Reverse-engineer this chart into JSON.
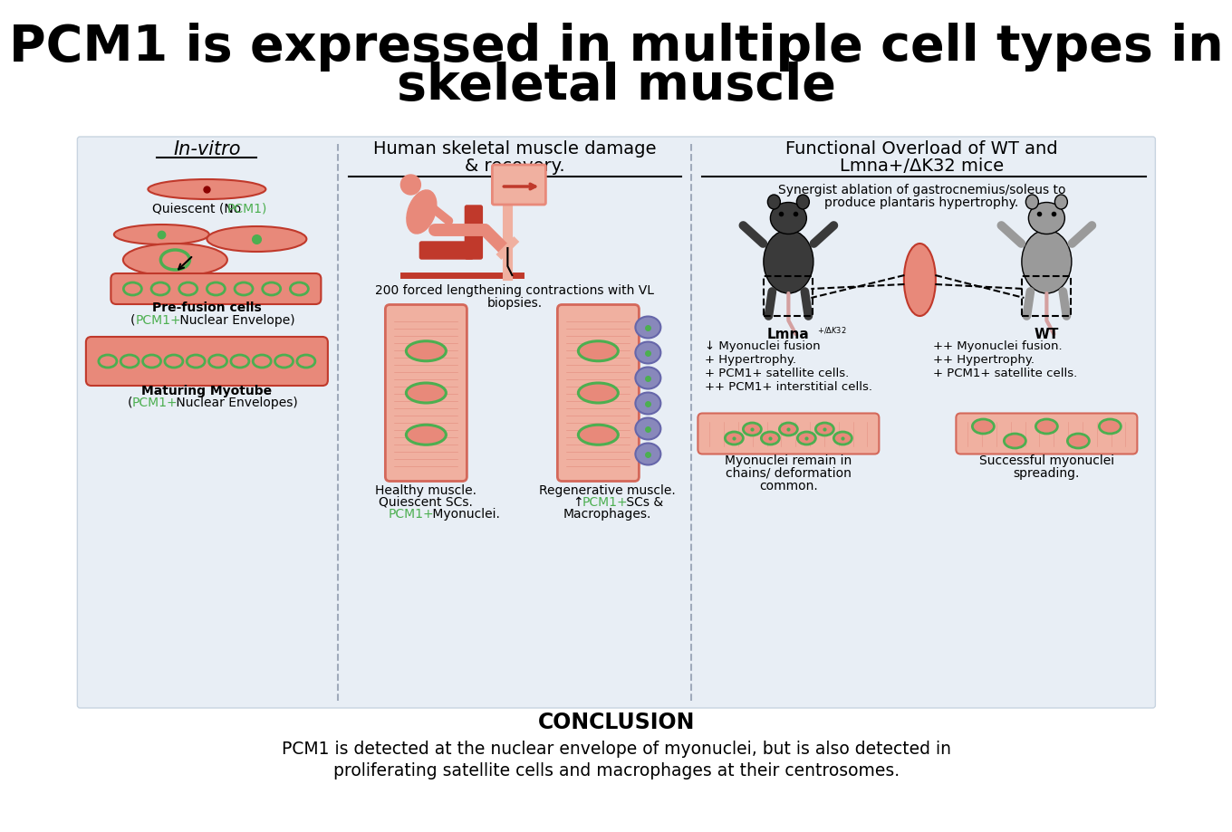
{
  "title_line1": "PCM1 is expressed in multiple cell types in",
  "title_line2": "skeletal muscle",
  "title_fontsize": 40,
  "background_color": "#ffffff",
  "panel_bg_color": "#e8eef5",
  "conclusion_title": "CONCLUSION",
  "conclusion_text1": "PCM1 is detected at the nuclear envelope of myonuclei, but is also detected in",
  "conclusion_text2": "proliferating satellite cells and macrophages at their centrosomes.",
  "col1_title": "In-vitro",
  "col2_title_line1": "Human skeletal muscle damage",
  "col2_title_line2": "& recovery.",
  "col3_title_line1": "Functional Overload of WT and",
  "col3_title_line2": "Lmna+/ΔK32 mice",
  "col3_subtitle_line1": "Synergist ablation of gastrocnemius/soleus to",
  "col3_subtitle_line2": "produce plantaris hypertrophy.",
  "lmna_label": "Lmna",
  "lmna_super": "+/ΔK32",
  "wt_label": "WT",
  "lmna_bullet1": "↓ Myonuclei fusion",
  "lmna_bullet2": "+ Hypertrophy.",
  "lmna_bullet3": "+ PCM1+ satellite cells.",
  "lmna_bullet4": "++ PCM1+ interstitial cells.",
  "wt_bullet1": "++ Myonuclei fusion.",
  "wt_bullet2": "++ Hypertrophy.",
  "wt_bullet3": "+ PCM1+ satellite cells.",
  "lmna_bottom": "Myonuclei remain in\nchains/ deformation\ncommon.",
  "wt_bottom": "Successful myonuclei\nspreading.",
  "salmon": "#e8897a",
  "salmon_light": "#f0b0a0",
  "salmon_dark": "#d4685a",
  "green": "#4caf50",
  "dark_red": "#c0392b",
  "mouse_dark": "#3a3a3a",
  "mouse_light": "#9a9a9a",
  "muscle_pink": "#e8b0a0",
  "purple_macro": "#8888bb",
  "divider_color": "#a0aabb",
  "panel_edge": "#c8d4e0"
}
